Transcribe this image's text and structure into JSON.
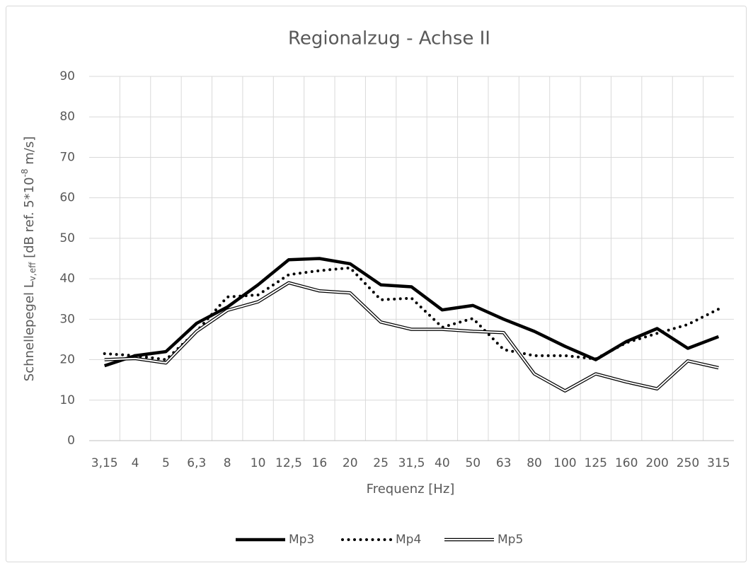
{
  "chart_data": {
    "type": "line",
    "title": "Regionalzug - Achse II",
    "x_label": "Frequenz  [Hz]",
    "y_label": [
      "Schnellepegel L",
      "v,eff",
      " [dB ref. 5*10",
      "-8",
      " m/s]"
    ],
    "categories": [
      "3,15",
      "4",
      "5",
      "6,3",
      "8",
      "10",
      "12,5",
      "16",
      "20",
      "25",
      "31,5",
      "40",
      "50",
      "63",
      "80",
      "100",
      "125",
      "160",
      "200",
      "250",
      "315"
    ],
    "series": [
      {
        "name": "Mp3",
        "color": "#000000",
        "style": "solid-thick",
        "values": [
          18.5,
          21,
          22,
          29,
          33,
          38.5,
          44.7,
          45,
          43.7,
          38.5,
          38,
          32.3,
          33.4,
          30,
          27,
          23.3,
          20,
          24.5,
          27.7,
          22.8,
          25.7
        ]
      },
      {
        "name": "Mp4",
        "color": "#000000",
        "style": "dotted",
        "values": [
          21.5,
          21,
          20,
          27,
          35.5,
          36,
          41,
          42,
          42.7,
          34.8,
          35.2,
          28,
          30.2,
          22.5,
          21,
          21,
          20.2,
          24.2,
          26.5,
          28.7,
          32.5
        ]
      },
      {
        "name": "Mp5",
        "color": "#000000",
        "style": "double",
        "values": [
          20,
          20.3,
          19.2,
          27,
          32.2,
          34.3,
          39,
          37,
          36.5,
          29.3,
          27.5,
          27.5,
          27,
          26.7,
          16.5,
          12.3,
          16.5,
          14.5,
          12.8,
          19.7,
          18
        ]
      }
    ],
    "ylim": [
      0,
      90
    ],
    "yticks": [
      0,
      10,
      20,
      30,
      40,
      50,
      60,
      70,
      80,
      90
    ],
    "grid": true,
    "legend": "bottom"
  }
}
